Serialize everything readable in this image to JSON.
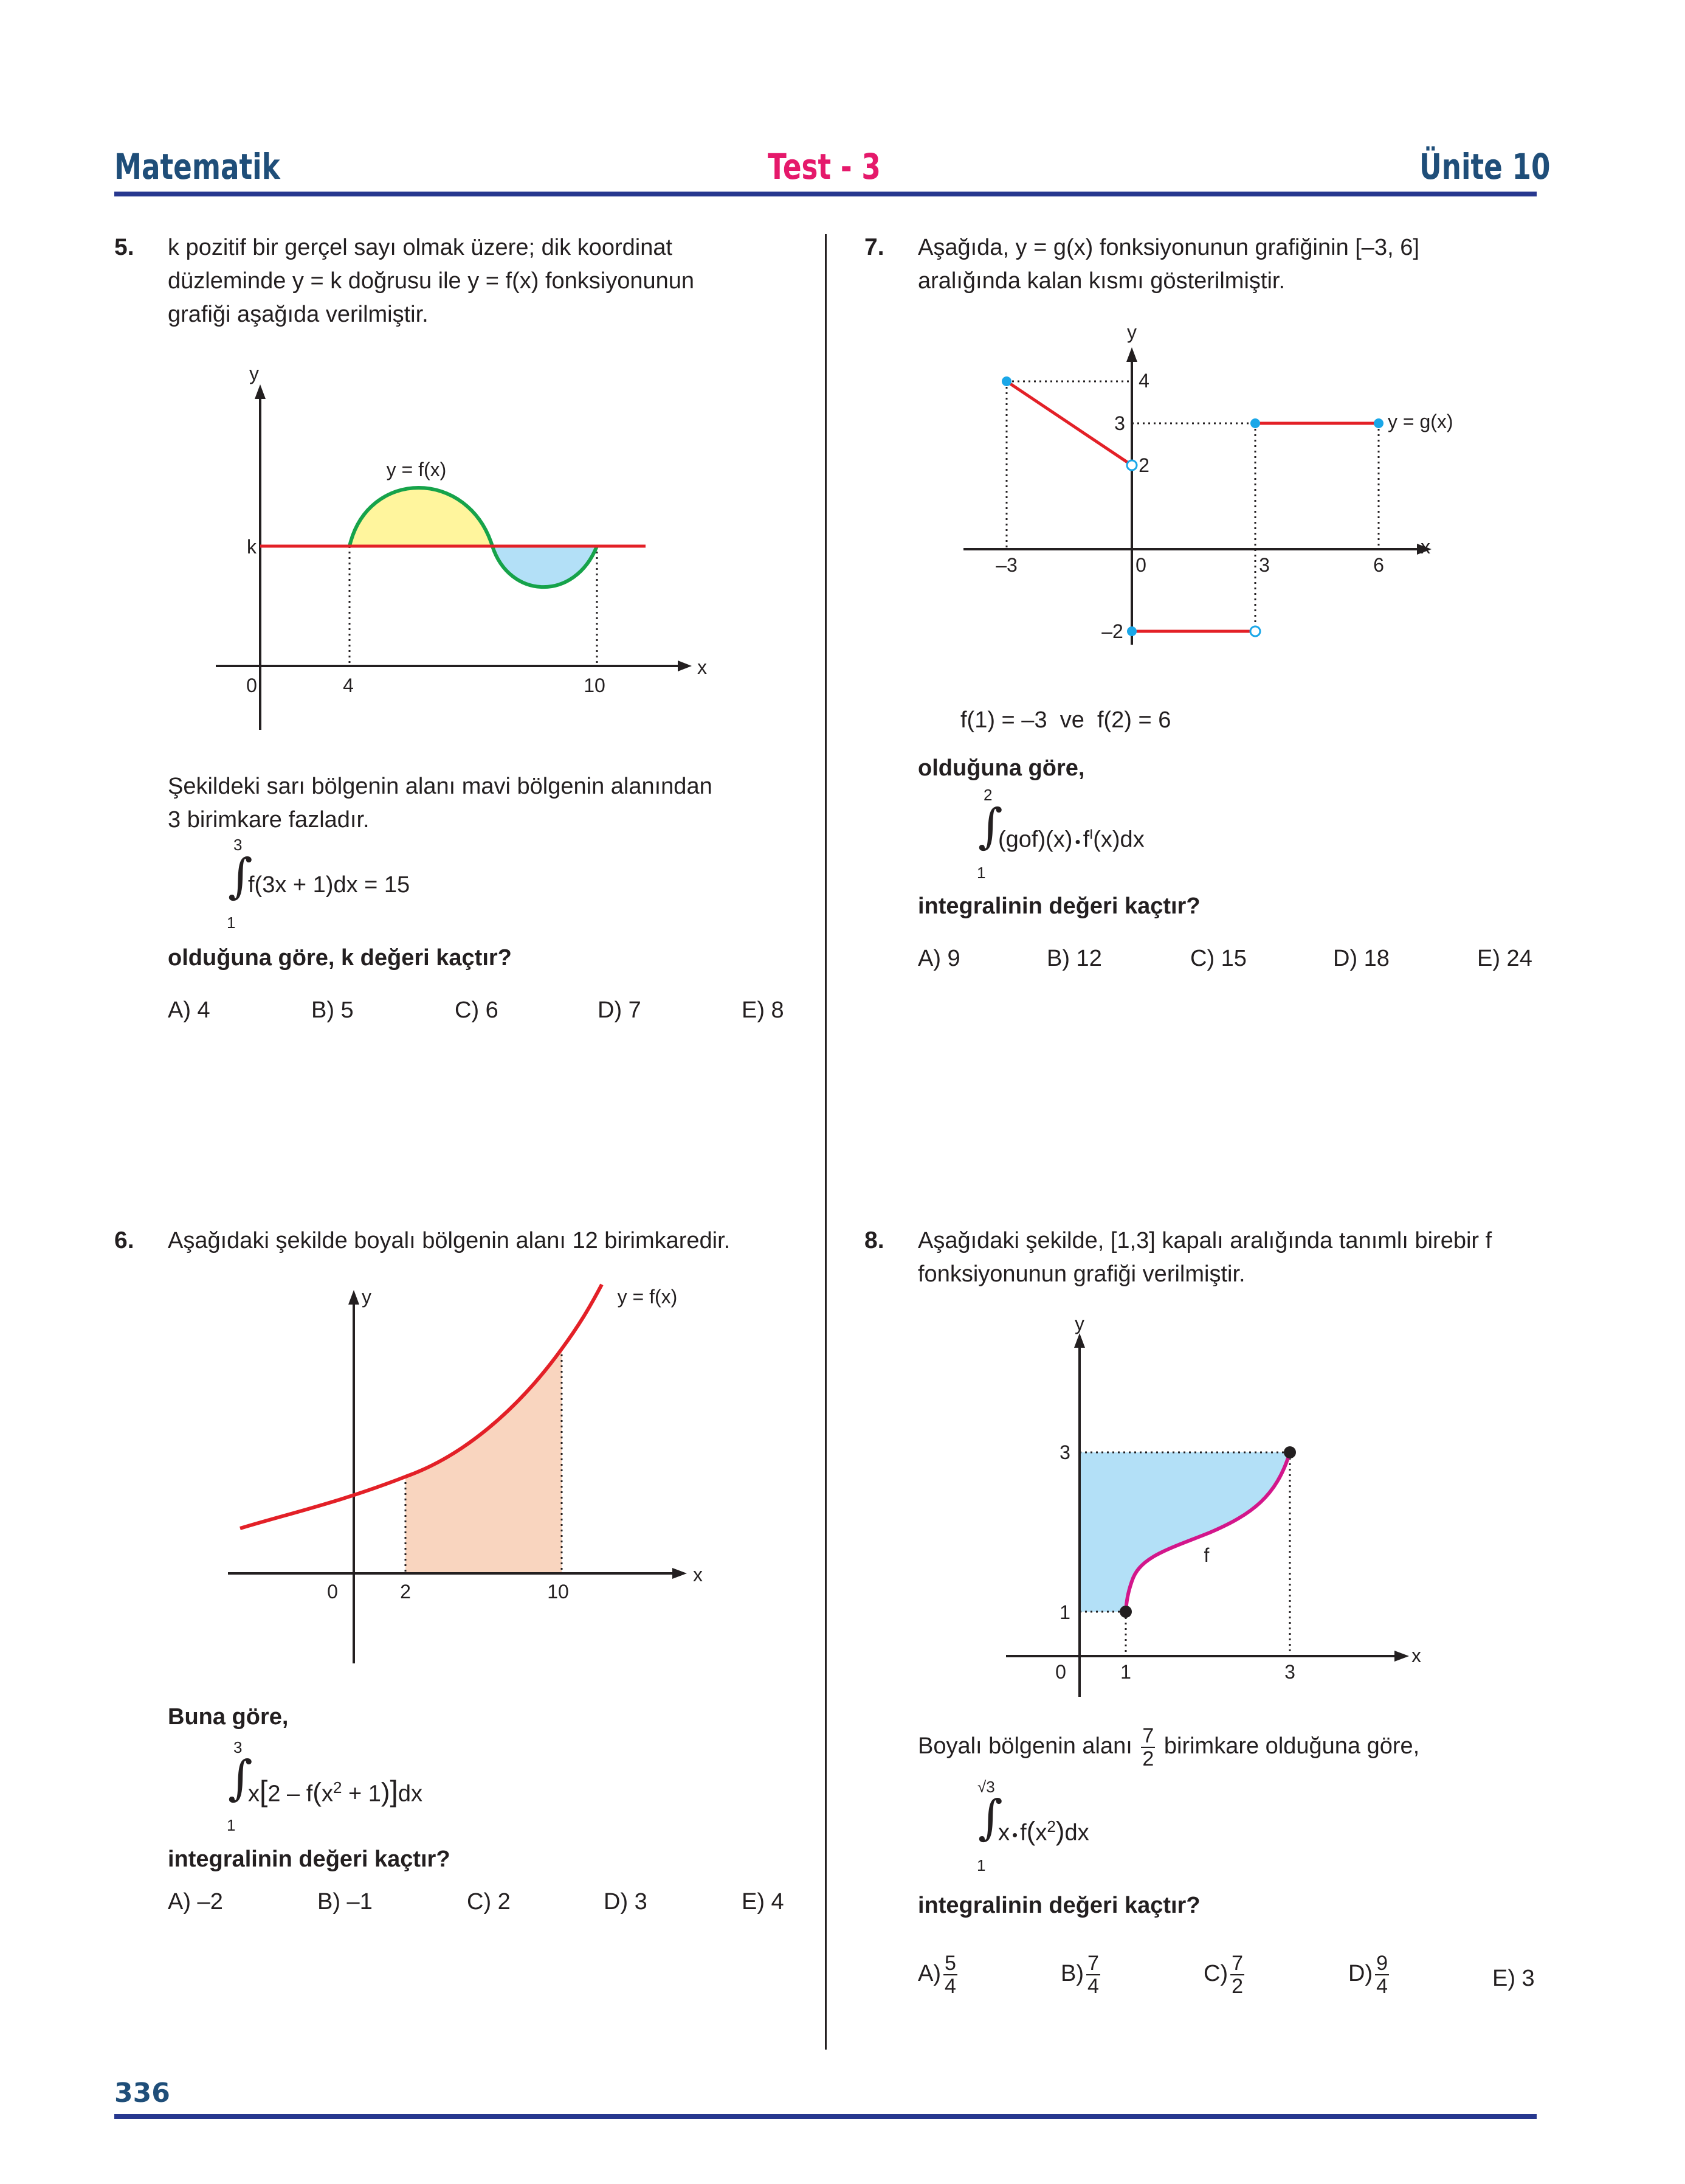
{
  "header": {
    "subject": "Matematik",
    "test": "Test - 3",
    "unit": "Ünite 10"
  },
  "footer": {
    "page": "336"
  },
  "q5": {
    "number": "5.",
    "text1": "k pozitif bir gerçel sayı olmak üzere; dik koordinat",
    "text2": "düzleminde y = k doğrusu ile y = f(x) fonksiyonunun",
    "text3": "grafiği aşağıda verilmiştir.",
    "graph": {
      "y_label": "y",
      "x_label": "x",
      "curve_label": "y = f(x)",
      "k_label": "k",
      "origin": "0",
      "x1": "4",
      "x2": "10"
    },
    "cond1": "Şekildeki sarı bölgenin alanı mavi bölgenin alanından",
    "cond2": "3 birimkare fazladır.",
    "int_upper": "3",
    "int_lower": "1",
    "int_expr": "f(3x + 1)dx = 15",
    "question": "olduğuna göre, k değeri kaçtır?",
    "options": [
      "A) 4",
      "B) 5",
      "C) 6",
      "D) 7",
      "E) 8"
    ]
  },
  "q6": {
    "number": "6.",
    "text1": "Aşağıdaki şekilde boyalı bölgenin alanı 12 birimkaredir.",
    "graph": {
      "y_label": "y",
      "x_label": "x",
      "curve_label": "y = f(x)",
      "origin": "0",
      "x1": "2",
      "x2": "10"
    },
    "lead": "Buna göre,",
    "int_upper": "3",
    "int_lower": "1",
    "int_expr_a": "x",
    "int_expr_b": "2 – f",
    "int_expr_c": "x",
    "int_expr_sup": "2",
    "int_expr_d": " + 1",
    "int_expr_e": "dx",
    "question": "integralinin değeri kaçtır?",
    "options": [
      "A) –2",
      "B) –1",
      "C) 2",
      "D) 3",
      "E) 4"
    ]
  },
  "q7": {
    "number": "7.",
    "text1": "Aşağıda, y = g(x) fonksiyonunun grafiğinin [–3, 6]",
    "text2": "aralığında kalan kısmı gösterilmiştir.",
    "graph": {
      "y_label": "y",
      "x_label": "x",
      "curve_label": "y = g(x)",
      "y4": "4",
      "y3": "3",
      "y2": "2",
      "yn2": "–2",
      "xn3": "–3",
      "origin": "0",
      "x3": "3",
      "x6": "6"
    },
    "given": "f(1) = –3  ve  f(2) = 6",
    "lead": "olduğuna göre,",
    "int_upper": "2",
    "int_lower": "1",
    "int_expr_a": "(gof)(x)",
    "int_expr_dot": "•",
    "int_expr_b": "f",
    "int_expr_prime": "I",
    "int_expr_c": "(x)dx",
    "question": "integralinin değeri kaçtır?",
    "options": [
      "A) 9",
      "B) 12",
      "C) 15",
      "D) 18",
      "E) 24"
    ]
  },
  "q8": {
    "number": "8.",
    "text1": "Aşağıdaki şekilde, [1,3] kapalı aralığında tanımlı birebir f",
    "text2": "fonksiyonunun grafiği verilmiştir.",
    "graph": {
      "y_label": "y",
      "x_label": "x",
      "curve_label": "f",
      "y3": "3",
      "y1": "1",
      "origin": "0",
      "x1": "1",
      "x3": "3"
    },
    "area_a": "Boyalı bölgenin alanı",
    "area_num": "7",
    "area_den": "2",
    "area_b": "birimkare olduğuna göre,",
    "int_upper": "√3",
    "int_lower": "1",
    "int_expr_a": "x",
    "int_expr_dot": "•",
    "int_expr_b": "f",
    "int_expr_c": "x",
    "int_expr_sup": "2",
    "int_expr_d": "dx",
    "question": "integralinin değeri kaçtır?",
    "options": [
      {
        "label": "A)",
        "num": "5",
        "den": "4"
      },
      {
        "label": "B)",
        "num": "7",
        "den": "4"
      },
      {
        "label": "C)",
        "num": "7",
        "den": "2"
      },
      {
        "label": "D)",
        "num": "9",
        "den": "4"
      },
      {
        "label": "E) 3"
      }
    ]
  },
  "colors": {
    "navy": "#1f4e79",
    "pink": "#e5196b",
    "rule": "#27388f",
    "red": "#e32027",
    "green": "#16a34a",
    "yellow": "#fff59d",
    "lightblue": "#b3e0f7",
    "peach": "#f9d5bf",
    "magenta": "#d3168b",
    "cyan": "#1aa7e8"
  }
}
